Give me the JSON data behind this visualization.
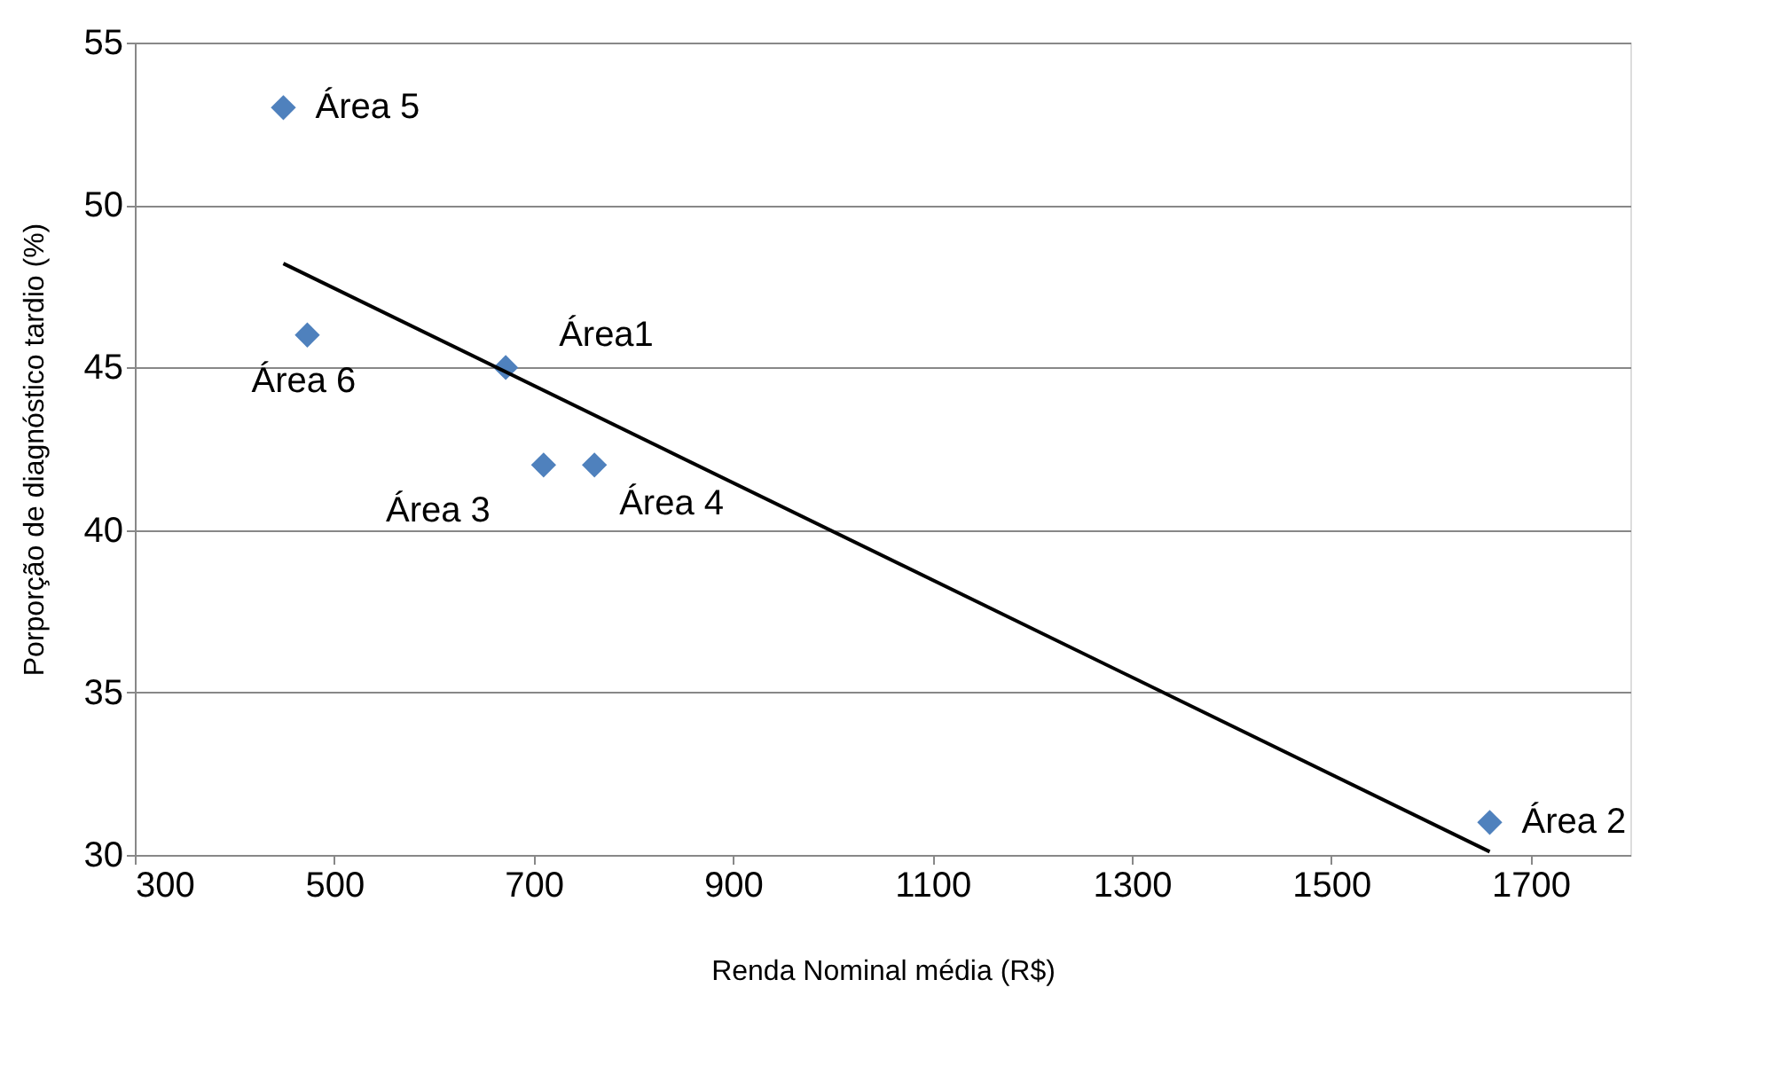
{
  "chart_data": {
    "type": "scatter",
    "xlabel": "Renda Nominal média (R$)",
    "ylabel": "Porporção de diagnóstico tardio (%)",
    "x": [
      449,
      473,
      672,
      710,
      761,
      1659
    ],
    "series": [
      {
        "color": "#4f81bd",
        "marker": "diamond",
        "values": [
          53,
          46,
          45,
          42,
          42,
          31
        ]
      },
      {
        "type": "line",
        "color": "#000000",
        "x": [
          449,
          1659
        ],
        "values": [
          48.2,
          30.1
        ],
        "marker": "none",
        "line_style": "solid"
      }
    ],
    "annotations": [
      {
        "text": "Área 5",
        "x": 449,
        "y": 53
      },
      {
        "text": "Área 6",
        "x": 473,
        "y": 46
      },
      {
        "text": "Área1",
        "x": 672,
        "y": 45
      },
      {
        "text": "Área 3",
        "x": 710,
        "y": 42
      },
      {
        "text": "Área 4",
        "x": 761,
        "y": 42
      },
      {
        "text": "Área 2",
        "x": 1659,
        "y": 31
      }
    ],
    "xlim": [
      300,
      1800
    ],
    "xticks": [
      300,
      500,
      700,
      900,
      1100,
      1300,
      1500,
      1700
    ],
    "ylim": [
      30,
      55
    ],
    "yticks": [
      30,
      35,
      40,
      45,
      50,
      55
    ],
    "grid": "y",
    "legend": false
  }
}
